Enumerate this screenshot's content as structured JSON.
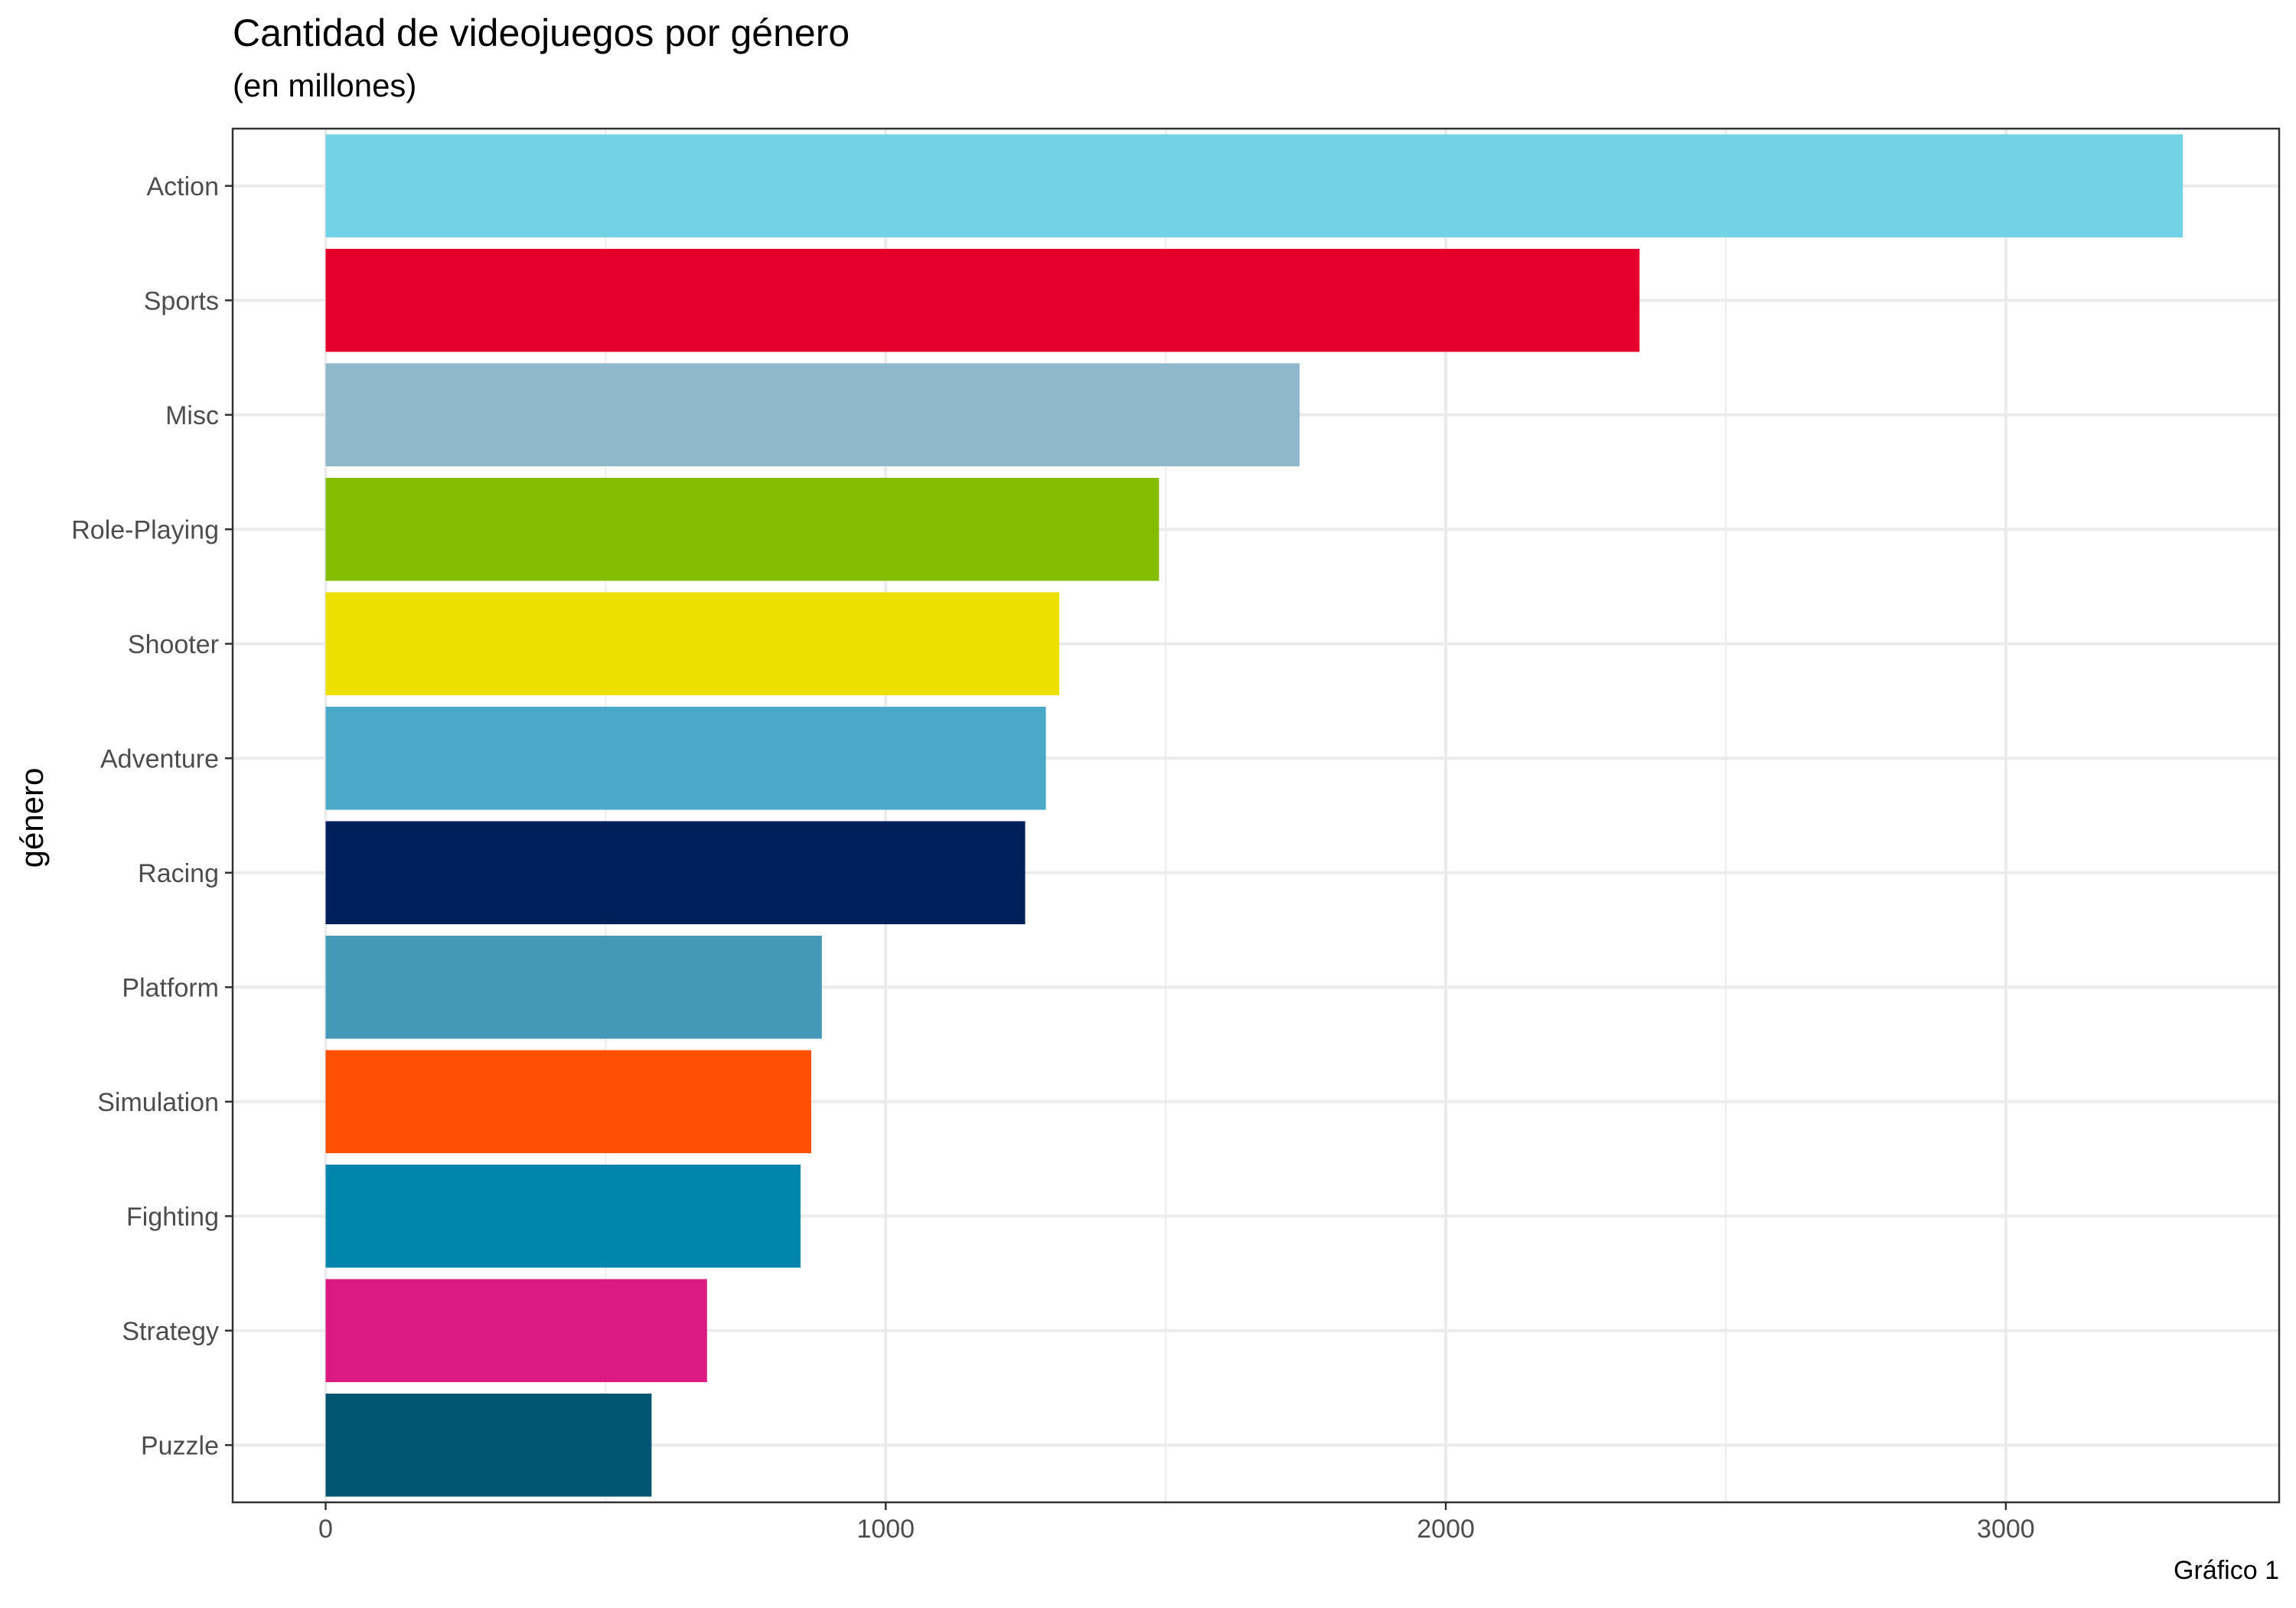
{
  "chart_data": {
    "type": "bar",
    "orientation": "horizontal",
    "title": "Cantidad de videojuegos por género",
    "subtitle": "(en millones)",
    "xlabel": "",
    "ylabel": "género",
    "caption": "Gráfico 1",
    "categories": [
      "Action",
      "Sports",
      "Misc",
      "Role-Playing",
      "Shooter",
      "Adventure",
      "Racing",
      "Platform",
      "Simulation",
      "Fighting",
      "Strategy",
      "Puzzle"
    ],
    "values": [
      3316,
      2346,
      1739,
      1488,
      1310,
      1286,
      1249,
      886,
      867,
      848,
      681,
      582
    ],
    "colors": [
      "#72D2E6",
      "#E4002B",
      "#8FB8CA",
      "#84BD00",
      "#EDE000",
      "#49A9C6",
      "#00205B",
      "#4399B7",
      "#FF5000",
      "#0086AD",
      "#DC1A84",
      "#005670"
    ],
    "xlim": [
      -166,
      3488
    ],
    "xticks": [
      0,
      1000,
      2000,
      3000
    ],
    "xtick_labels": [
      "0",
      "1000",
      "2000",
      "3000"
    ],
    "grid": true,
    "legend": "none"
  }
}
